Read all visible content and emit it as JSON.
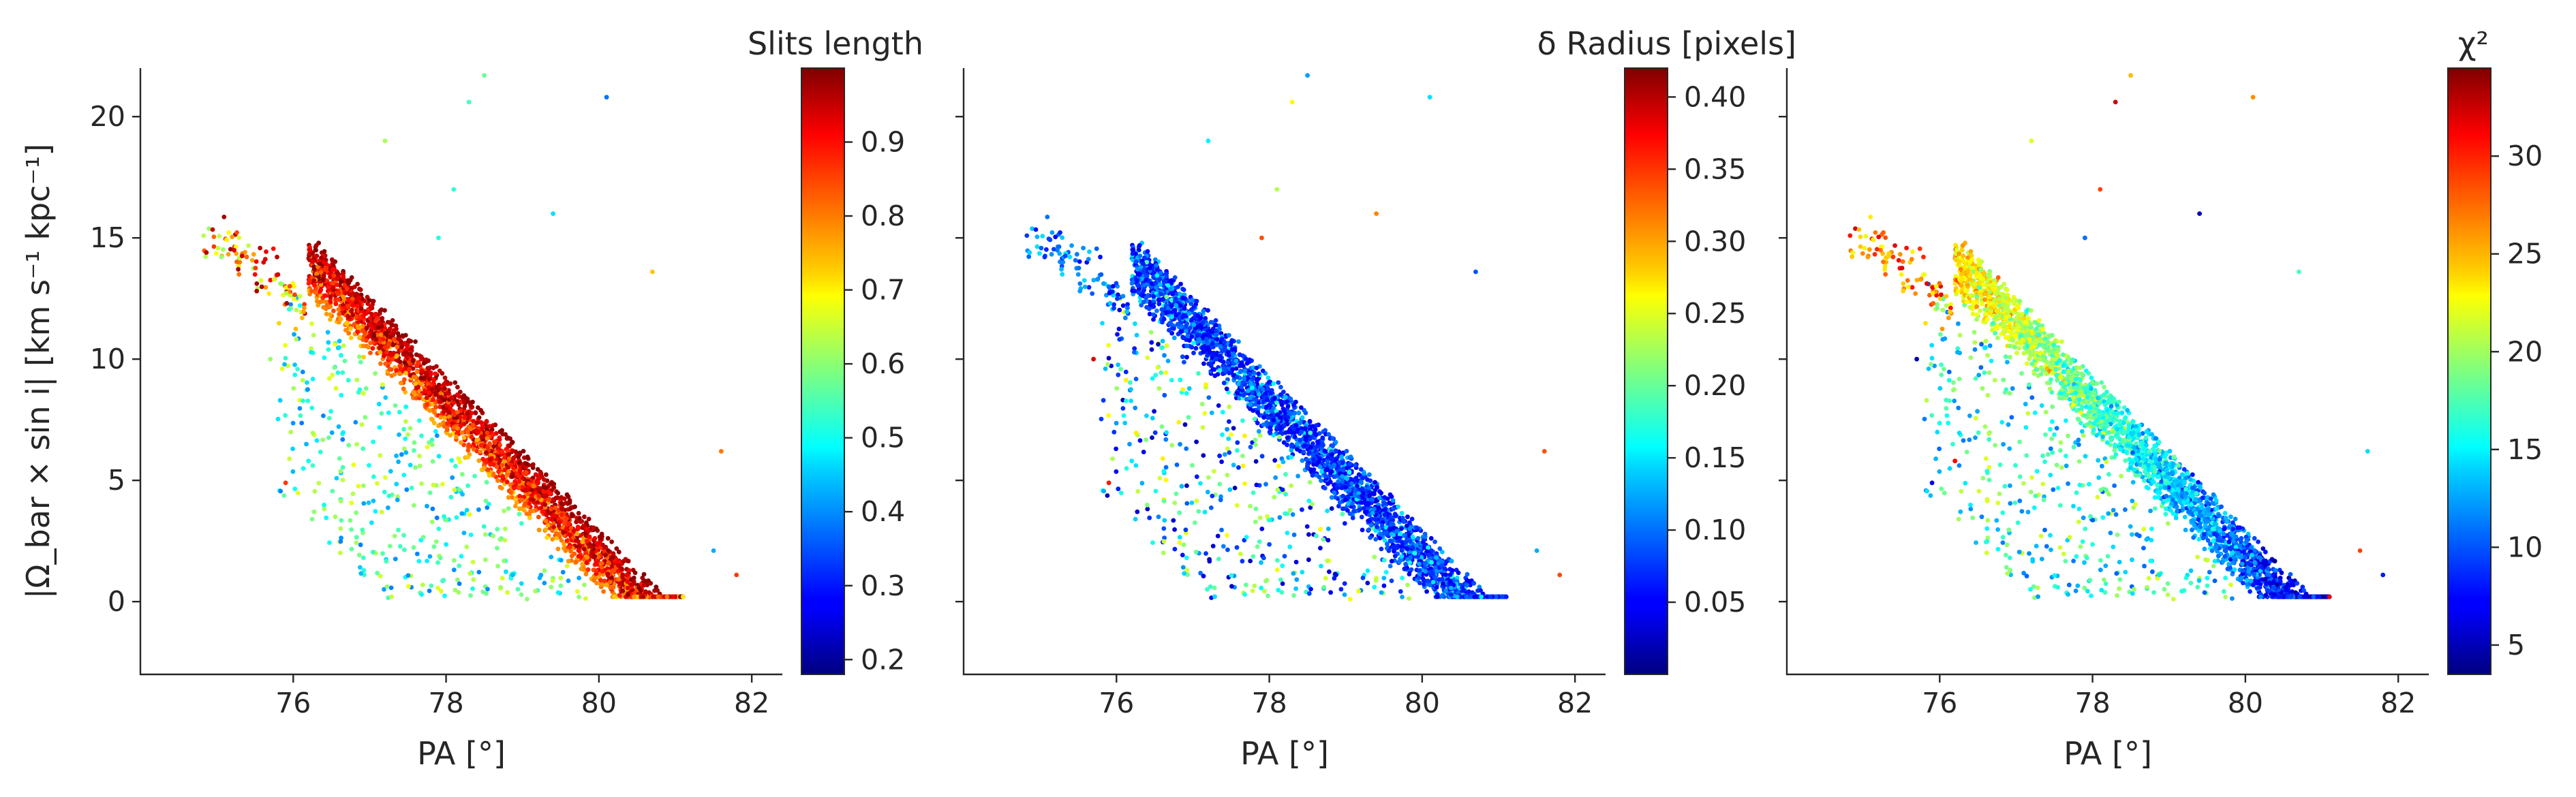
{
  "chart_data": [
    {
      "type": "scatter",
      "xlabel": "PA [°]",
      "ylabel": "|Ω_bar × sin i|   [km s⁻¹ kpc⁻¹]",
      "xticks": [
        76,
        78,
        80,
        82
      ],
      "yticks": [
        0,
        5,
        10,
        15,
        20
      ],
      "show_yticklabels": true,
      "xlim": [
        74.0,
        82.4
      ],
      "ylim": [
        -3.0,
        22.0
      ],
      "grid": false,
      "colorbar": {
        "title": "Slits length",
        "vmin": 0.18,
        "vmax": 1.0,
        "ticks": [
          0.2,
          0.3,
          0.4,
          0.5,
          0.6,
          0.7,
          0.8,
          0.9
        ],
        "ticklabels": [
          "0.2",
          "0.3",
          "0.4",
          "0.5",
          "0.6",
          "0.7",
          "0.8",
          "0.9"
        ],
        "colormap": "jet"
      },
      "color_encoding": "slits_length"
    },
    {
      "type": "scatter",
      "xlabel": "PA [°]",
      "ylabel": "",
      "xticks": [
        76,
        78,
        80,
        82
      ],
      "yticks": [
        0,
        5,
        10,
        15,
        20
      ],
      "show_yticklabels": false,
      "xlim": [
        74.0,
        82.4
      ],
      "ylim": [
        -3.0,
        22.0
      ],
      "grid": false,
      "colorbar": {
        "title": "δ Radius [pixels]",
        "vmin": 0.0,
        "vmax": 0.42,
        "ticks": [
          0.05,
          0.1,
          0.15,
          0.2,
          0.25,
          0.3,
          0.35,
          0.4
        ],
        "ticklabels": [
          "0.05",
          "0.10",
          "0.15",
          "0.20",
          "0.25",
          "0.30",
          "0.35",
          "0.40"
        ],
        "colormap": "jet"
      },
      "color_encoding": "delta_radius"
    },
    {
      "type": "scatter",
      "xlabel": "PA [°]",
      "ylabel": "",
      "xticks": [
        76,
        78,
        80,
        82
      ],
      "yticks": [
        0,
        5,
        10,
        15,
        20
      ],
      "show_yticklabels": false,
      "xlim": [
        74.0,
        82.4
      ],
      "ylim": [
        -3.0,
        22.0
      ],
      "grid": false,
      "colorbar": {
        "title": "χ²",
        "vmin": 3.5,
        "vmax": 34.5,
        "ticks": [
          5,
          10,
          15,
          20,
          25,
          30
        ],
        "ticklabels": [
          "5",
          "10",
          "15",
          "20",
          "25",
          "30"
        ],
        "colormap": "jet"
      },
      "color_encoding": "chi2"
    }
  ]
}
